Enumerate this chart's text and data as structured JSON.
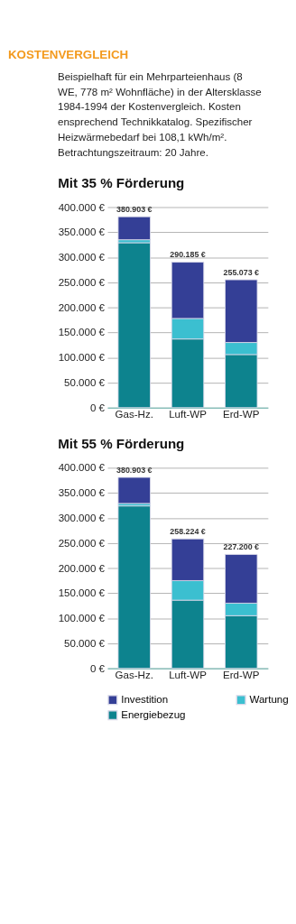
{
  "chart_data": [
    {
      "type": "other",
      "title": "KOSTENVERGLEICH",
      "annotations": [
        "Beispielhaft für ein Mehrparteienhaus (8 WE, 778 m² Wohnfläche) in der Altersklasse 1984-1994 der Kostenvergleich. Kosten ensprechend Technikkatalog. Spezifischer Heizwärmebedarf bei 108,1 kWh/m². Betrachtungszeitraum: 20 Jahre."
      ]
    },
    {
      "type": "bar",
      "stacked": true,
      "title": "Mit 35 % Förderung",
      "categories": [
        "Gas-Hz.",
        "Luft-WP",
        "Erd-WP"
      ],
      "series": [
        {
          "color": "#0d838e",
          "values": [
            329000,
            137000,
            106000
          ]
        },
        {
          "color": "#3bbfd0",
          "values": [
            6000,
            41000,
            24000
          ]
        },
        {
          "color": "#343f96",
          "values": [
            45903,
            112185,
            125073
          ]
        }
      ],
      "totals": [
        "380.903 €",
        "290.185 €",
        "255.073 €"
      ],
      "ylim": [
        0,
        400000
      ],
      "yticks": [
        {
          "value": 0,
          "label": "0 €"
        },
        {
          "value": 50000,
          "label": "50.000 €"
        },
        {
          "value": 100000,
          "label": "100.000 €"
        },
        {
          "value": 150000,
          "label": "150.000 €"
        },
        {
          "value": 200000,
          "label": "200.000 €"
        },
        {
          "value": 250000,
          "label": "250.000 €"
        },
        {
          "value": 300000,
          "label": "300.000 €"
        },
        {
          "value": 350000,
          "label": "350.000 €"
        },
        {
          "value": 400000,
          "label": "400.000 €"
        }
      ],
      "grid": "y",
      "legend": false
    },
    {
      "type": "bar",
      "stacked": true,
      "title": "Mit 55 % Förderung",
      "categories": [
        "Gas-Hz.",
        "Luft-WP",
        "Erd-WP"
      ],
      "series": [
        {
          "name": "Energiebezug",
          "color": "#0d838e",
          "values": [
            324000,
            136000,
            105000
          ]
        },
        {
          "name": "Wartung",
          "color": "#3bbfd0",
          "values": [
            5000,
            39000,
            25000
          ]
        },
        {
          "name": "Investition",
          "color": "#343f96",
          "values": [
            51903,
            83224,
            97200
          ]
        }
      ],
      "totals": [
        "380.903 €",
        "258.224 €",
        "227.200 €"
      ],
      "ylim": [
        0,
        400000
      ],
      "yticks": [
        {
          "value": 0,
          "label": "0 €"
        },
        {
          "value": 50000,
          "label": "50.000 €"
        },
        {
          "value": 100000,
          "label": "100.000 €"
        },
        {
          "value": 150000,
          "label": "150.000 €"
        },
        {
          "value": 200000,
          "label": "200.000 €"
        },
        {
          "value": 250000,
          "label": "250.000 €"
        },
        {
          "value": 300000,
          "label": "300.000 €"
        },
        {
          "value": 350000,
          "label": "350.000 €"
        },
        {
          "value": 400000,
          "label": "400.000 €"
        }
      ],
      "grid": "y",
      "legend": "bottom"
    }
  ]
}
